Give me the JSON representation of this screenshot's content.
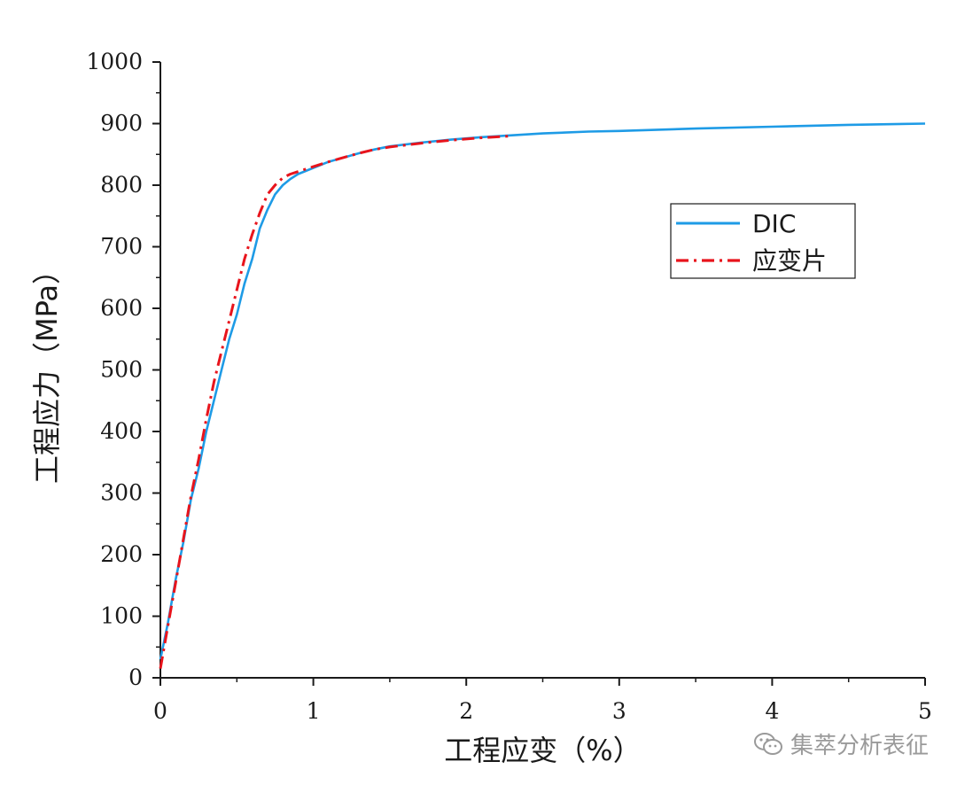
{
  "chart_data": {
    "type": "line",
    "xlabel": "工程应变（%）",
    "ylabel": "工程应力（MPa）",
    "xlim": [
      0,
      5
    ],
    "ylim": [
      0,
      1000
    ],
    "xticks": [
      "0",
      "1",
      "2",
      "3",
      "4",
      "5"
    ],
    "yticks": [
      "0",
      "100",
      "200",
      "300",
      "400",
      "500",
      "600",
      "700",
      "800",
      "900",
      "1000"
    ],
    "grid": false,
    "legend_position": "right-middle",
    "series": [
      {
        "name": "DIC",
        "color": "#1e9be6",
        "style": "solid",
        "x": [
          0.0,
          0.05,
          0.1,
          0.15,
          0.2,
          0.25,
          0.3,
          0.35,
          0.4,
          0.45,
          0.5,
          0.55,
          0.6,
          0.65,
          0.7,
          0.75,
          0.8,
          0.85,
          0.9,
          1.0,
          1.1,
          1.2,
          1.3,
          1.4,
          1.5,
          1.7,
          1.9,
          2.1,
          2.3,
          2.5,
          2.8,
          3.0,
          3.5,
          4.0,
          4.5,
          5.0
        ],
        "y": [
          30,
          90,
          160,
          220,
          290,
          340,
          400,
          450,
          500,
          550,
          590,
          640,
          680,
          730,
          760,
          785,
          800,
          810,
          818,
          828,
          838,
          845,
          852,
          858,
          863,
          869,
          874,
          878,
          881,
          884,
          887,
          888,
          892,
          895,
          898,
          900
        ]
      },
      {
        "name": "应变片",
        "color": "#e8141c",
        "style": "dashdot",
        "x": [
          0.0,
          0.05,
          0.1,
          0.15,
          0.2,
          0.25,
          0.3,
          0.35,
          0.4,
          0.45,
          0.5,
          0.55,
          0.6,
          0.65,
          0.7,
          0.75,
          0.8,
          0.85,
          0.9,
          1.0,
          1.1,
          1.2,
          1.3,
          1.4,
          1.5,
          1.7,
          1.9,
          2.1,
          2.3
        ],
        "y": [
          15,
          85,
          155,
          225,
          295,
          355,
          420,
          480,
          530,
          580,
          630,
          680,
          720,
          755,
          785,
          800,
          812,
          818,
          822,
          830,
          838,
          845,
          852,
          858,
          862,
          868,
          873,
          877,
          880
        ]
      }
    ]
  },
  "watermark": {
    "text": "集萃分析表征",
    "icon": "wechat-icon"
  }
}
